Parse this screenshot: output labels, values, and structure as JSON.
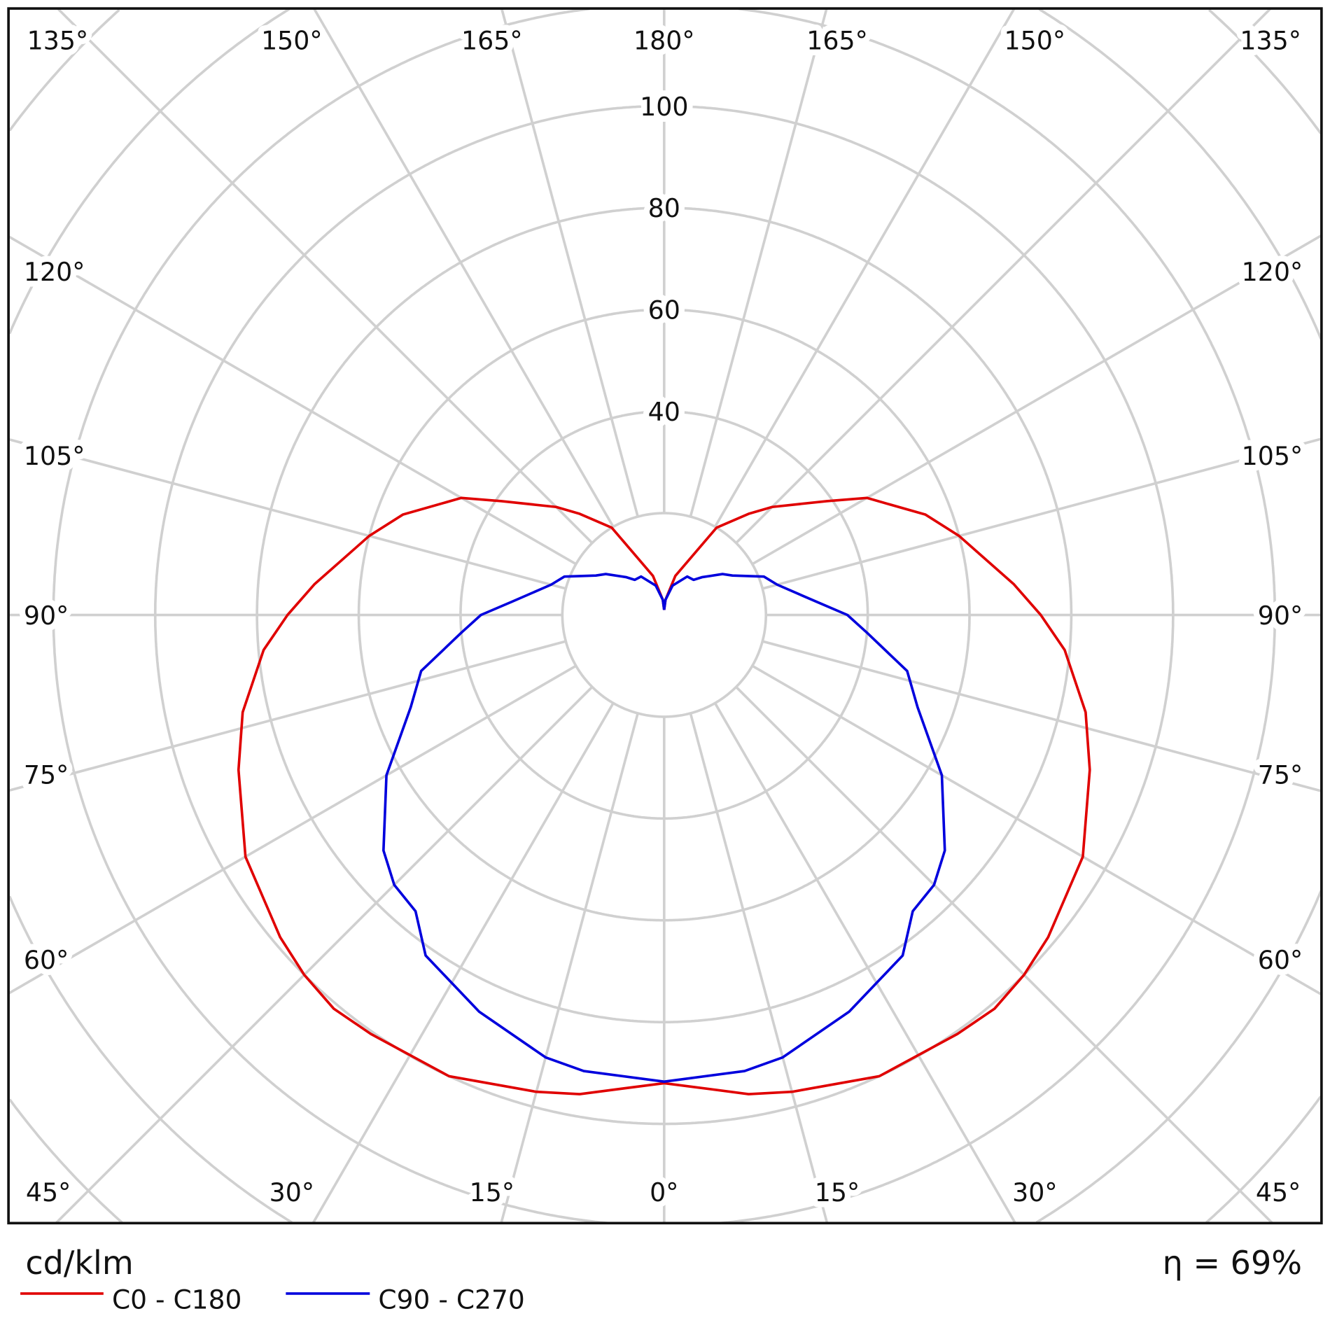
{
  "chart_data": {
    "type": "polar-line",
    "title": "",
    "unit_label": "cd/klm",
    "efficiency_label": "η = 69%",
    "radial_ticks": [
      40,
      60,
      80,
      100
    ],
    "radial_grid_step": 20,
    "angle_step_deg": 15,
    "angle_labels": {
      "top": [
        "135°",
        "150°",
        "165°",
        "180°",
        "165°",
        "150°",
        "135°"
      ],
      "left": [
        "120°",
        "105°",
        "90°",
        "75°",
        "60°"
      ],
      "right": [
        "120°",
        "105°",
        "90°",
        "75°",
        "60°"
      ],
      "bottom": [
        "45°",
        "30°",
        "15°",
        "0°",
        "15°",
        "30°",
        "45°"
      ]
    },
    "gamma_deg": [
      0,
      10,
      15,
      25,
      35,
      40,
      45,
      50,
      60,
      70,
      77,
      85,
      90,
      95,
      105,
      111,
      120,
      125,
      135,
      140,
      149,
      164,
      175,
      180
    ],
    "series": [
      {
        "name": "C0 - C180",
        "color": "#e00000",
        "values": [
          92,
          95.6,
          97,
          100,
          100.5,
          101,
          100,
          98.5,
          95,
          89,
          85,
          79,
          74,
          69,
          60,
          55,
          46,
          39,
          30,
          26,
          20,
          8,
          3,
          1
        ]
      },
      {
        "name": "C90 - C270",
        "color": "#0000dd",
        "values": [
          91.7,
          91,
          90,
          86,
          81.7,
          76,
          75,
          72,
          63,
          53,
          49,
          40,
          36,
          30,
          23,
          21,
          15.5,
          14,
          10.5,
          9,
          8.8,
          6,
          3,
          1
        ]
      }
    ],
    "legend_placement": "bottom-left"
  }
}
